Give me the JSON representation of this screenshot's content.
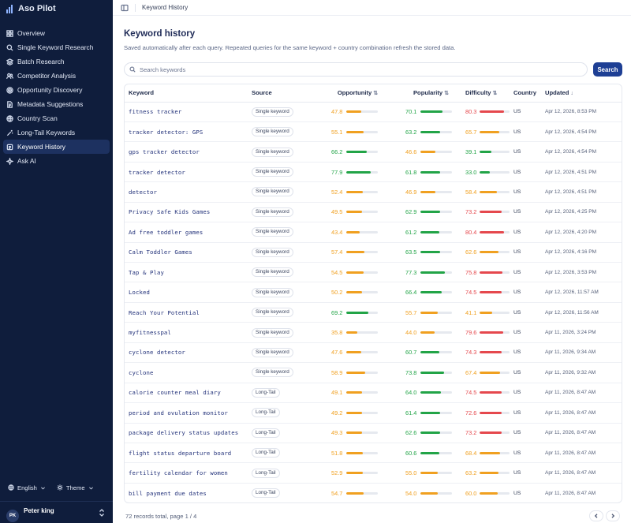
{
  "app": {
    "name": "Aso Pilot"
  },
  "sidebar": {
    "items": [
      {
        "label": "Overview",
        "icon": "grid-icon",
        "active": false
      },
      {
        "label": "Single Keyword Research",
        "icon": "search-icon",
        "active": false
      },
      {
        "label": "Batch Research",
        "icon": "layers-icon",
        "active": false
      },
      {
        "label": "Competitor Analysis",
        "icon": "users-icon",
        "active": false
      },
      {
        "label": "Opportunity Discovery",
        "icon": "target-icon",
        "active": false
      },
      {
        "label": "Metadata Suggestions",
        "icon": "file-text-icon",
        "active": false
      },
      {
        "label": "Country Scan",
        "icon": "globe-icon",
        "active": false
      },
      {
        "label": "Long-Tail Keywords",
        "icon": "wand-icon",
        "active": false
      },
      {
        "label": "Keyword History",
        "icon": "history-icon",
        "active": true
      },
      {
        "label": "Ask AI",
        "icon": "sparkle-icon",
        "active": false
      }
    ],
    "language": "English",
    "theme_label": "Theme",
    "user": {
      "initials": "PK",
      "name": "Peter king"
    }
  },
  "topbar": {
    "breadcrumb": "Keyword History"
  },
  "page": {
    "title": "Keyword history",
    "subtitle": "Saved automatically after each query. Repeated queries for the same keyword + country combination refresh the stored data.",
    "search_placeholder": "Search keywords",
    "search_button": "Search"
  },
  "table": {
    "columns": {
      "keyword": "Keyword",
      "source": "Source",
      "opportunity": "Opportunity",
      "popularity": "Popularity",
      "difficulty": "Difficulty",
      "country": "Country",
      "updated": "Updated"
    },
    "colors": {
      "green": "#22a447",
      "orange": "#f0a020",
      "red": "#e5484d"
    },
    "rows": [
      {
        "keyword": "fitness tracker",
        "source": "Single keyword",
        "opportunity": "47.8",
        "opp_c": "orange",
        "popularity": "70.1",
        "pop_c": "green",
        "difficulty": "80.3",
        "diff_c": "red",
        "country": "US",
        "updated": "Apr 12, 2026, 8:53 PM"
      },
      {
        "keyword": "tracker detector: GPS",
        "source": "Single keyword",
        "opportunity": "55.1",
        "opp_c": "orange",
        "popularity": "63.2",
        "pop_c": "green",
        "difficulty": "65.7",
        "diff_c": "orange",
        "country": "US",
        "updated": "Apr 12, 2026, 4:54 PM"
      },
      {
        "keyword": "gps tracker detector",
        "source": "Single keyword",
        "opportunity": "66.2",
        "opp_c": "green",
        "popularity": "46.6",
        "pop_c": "orange",
        "difficulty": "39.1",
        "diff_c": "green",
        "country": "US",
        "updated": "Apr 12, 2026, 4:54 PM"
      },
      {
        "keyword": "tracker detector",
        "source": "Single keyword",
        "opportunity": "77.9",
        "opp_c": "green",
        "popularity": "61.8",
        "pop_c": "green",
        "difficulty": "33.0",
        "diff_c": "green",
        "country": "US",
        "updated": "Apr 12, 2026, 4:51 PM"
      },
      {
        "keyword": "detector",
        "source": "Single keyword",
        "opportunity": "52.4",
        "opp_c": "orange",
        "popularity": "46.9",
        "pop_c": "orange",
        "difficulty": "58.4",
        "diff_c": "orange",
        "country": "US",
        "updated": "Apr 12, 2026, 4:51 PM"
      },
      {
        "keyword": "Privacy Safe Kids Games",
        "source": "Single keyword",
        "opportunity": "49.5",
        "opp_c": "orange",
        "popularity": "62.9",
        "pop_c": "green",
        "difficulty": "73.2",
        "diff_c": "red",
        "country": "US",
        "updated": "Apr 12, 2026, 4:25 PM"
      },
      {
        "keyword": "Ad free toddler games",
        "source": "Single keyword",
        "opportunity": "43.4",
        "opp_c": "orange",
        "popularity": "61.2",
        "pop_c": "green",
        "difficulty": "80.4",
        "diff_c": "red",
        "country": "US",
        "updated": "Apr 12, 2026, 4:20 PM"
      },
      {
        "keyword": "Calm Toddler Games",
        "source": "Single keyword",
        "opportunity": "57.4",
        "opp_c": "orange",
        "popularity": "63.5",
        "pop_c": "green",
        "difficulty": "62.6",
        "diff_c": "orange",
        "country": "US",
        "updated": "Apr 12, 2026, 4:16 PM"
      },
      {
        "keyword": "Tap & Play",
        "source": "Single keyword",
        "opportunity": "54.5",
        "opp_c": "orange",
        "popularity": "77.3",
        "pop_c": "green",
        "difficulty": "75.8",
        "diff_c": "red",
        "country": "US",
        "updated": "Apr 12, 2026, 3:53 PM"
      },
      {
        "keyword": "Locked",
        "source": "Single keyword",
        "opportunity": "50.2",
        "opp_c": "orange",
        "popularity": "66.4",
        "pop_c": "green",
        "difficulty": "74.5",
        "diff_c": "red",
        "country": "US",
        "updated": "Apr 12, 2026, 11:57 AM"
      },
      {
        "keyword": "Reach Your Potential",
        "source": "Single keyword",
        "opportunity": "69.2",
        "opp_c": "green",
        "popularity": "55.7",
        "pop_c": "orange",
        "difficulty": "41.1",
        "diff_c": "orange",
        "country": "US",
        "updated": "Apr 12, 2026, 11:56 AM"
      },
      {
        "keyword": "myfitnesspal",
        "source": "Single keyword",
        "opportunity": "35.8",
        "opp_c": "orange",
        "popularity": "44.0",
        "pop_c": "orange",
        "difficulty": "79.6",
        "diff_c": "red",
        "country": "US",
        "updated": "Apr 11, 2026, 3:24 PM"
      },
      {
        "keyword": "cyclone detector",
        "source": "Single keyword",
        "opportunity": "47.6",
        "opp_c": "orange",
        "popularity": "60.7",
        "pop_c": "green",
        "difficulty": "74.3",
        "diff_c": "red",
        "country": "US",
        "updated": "Apr 11, 2026, 9:34 AM"
      },
      {
        "keyword": "cyclone",
        "source": "Single keyword",
        "opportunity": "58.9",
        "opp_c": "orange",
        "popularity": "73.8",
        "pop_c": "green",
        "difficulty": "67.4",
        "diff_c": "orange",
        "country": "US",
        "updated": "Apr 11, 2026, 9:32 AM"
      },
      {
        "keyword": "calorie counter meal diary",
        "source": "Long-Tail",
        "opportunity": "49.1",
        "opp_c": "orange",
        "popularity": "64.0",
        "pop_c": "green",
        "difficulty": "74.5",
        "diff_c": "red",
        "country": "US",
        "updated": "Apr 11, 2026, 8:47 AM"
      },
      {
        "keyword": "period and ovulation monitor",
        "source": "Long-Tail",
        "opportunity": "49.2",
        "opp_c": "orange",
        "popularity": "61.4",
        "pop_c": "green",
        "difficulty": "72.6",
        "diff_c": "red",
        "country": "US",
        "updated": "Apr 11, 2026, 8:47 AM"
      },
      {
        "keyword": "package delivery status updates",
        "source": "Long-Tail",
        "opportunity": "49.3",
        "opp_c": "orange",
        "popularity": "62.6",
        "pop_c": "green",
        "difficulty": "73.2",
        "diff_c": "red",
        "country": "US",
        "updated": "Apr 11, 2026, 8:47 AM"
      },
      {
        "keyword": "flight status departure board",
        "source": "Long-Tail",
        "opportunity": "51.8",
        "opp_c": "orange",
        "popularity": "60.6",
        "pop_c": "green",
        "difficulty": "68.4",
        "diff_c": "orange",
        "country": "US",
        "updated": "Apr 11, 2026, 8:47 AM"
      },
      {
        "keyword": "fertility calendar for women",
        "source": "Long-Tail",
        "opportunity": "52.9",
        "opp_c": "orange",
        "popularity": "55.0",
        "pop_c": "orange",
        "difficulty": "63.2",
        "diff_c": "orange",
        "country": "US",
        "updated": "Apr 11, 2026, 8:47 AM"
      },
      {
        "keyword": "bill payment due dates",
        "source": "Long-Tail",
        "opportunity": "54.7",
        "opp_c": "orange",
        "popularity": "54.0",
        "pop_c": "orange",
        "difficulty": "60.0",
        "diff_c": "orange",
        "country": "US",
        "updated": "Apr 11, 2026, 8:47 AM"
      }
    ]
  },
  "footer": {
    "summary": "72 records total, page 1 / 4"
  }
}
